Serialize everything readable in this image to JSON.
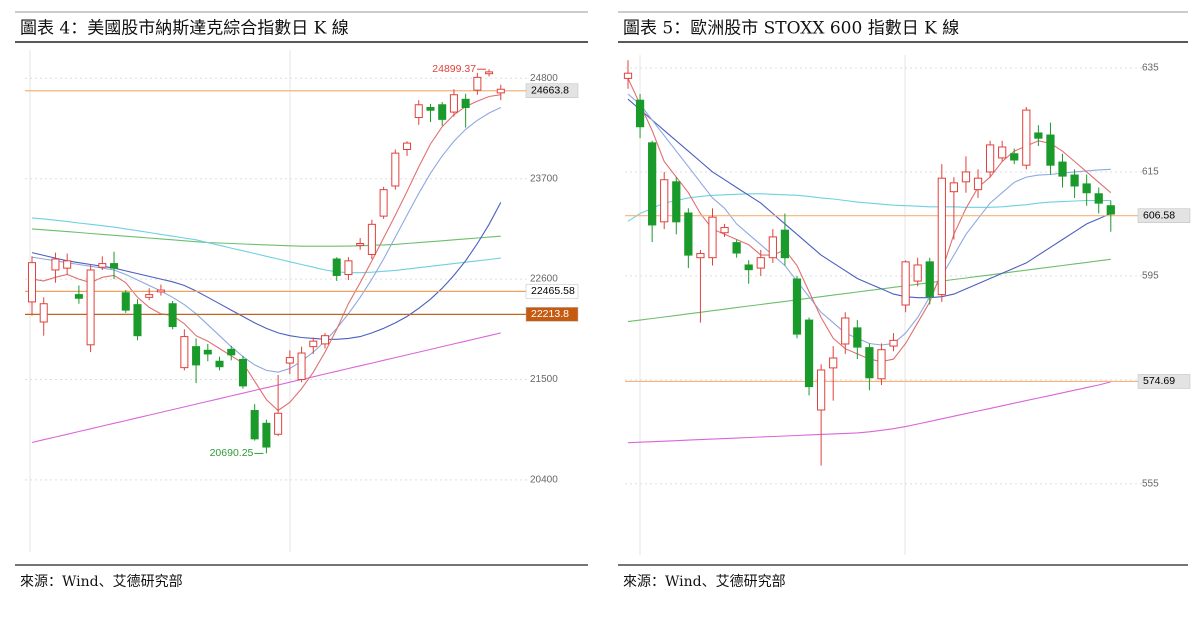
{
  "chart_data": [
    {
      "type": "candlestick",
      "title": "圖表 4：美國股市納斯達克綜合指數日 K 線",
      "source": "來源：Wind、艾德研究部",
      "ylim": [
        19610,
        25110
      ],
      "yticks": [
        20400,
        21500,
        22600,
        23700,
        24800
      ],
      "grid": true,
      "up_color": "#e0413c",
      "down_color": "#1a9a2a",
      "candles": {
        "open": [
          22350,
          22130,
          22700,
          22720,
          22430,
          21880,
          22730,
          22770,
          22450,
          22320,
          22400,
          22460,
          22330,
          21630,
          21860,
          21820,
          21700,
          21830,
          21720,
          21160,
          21020,
          20900,
          21680,
          21500,
          21860,
          21890,
          22820,
          22650,
          22970,
          22870,
          23290,
          23620,
          24020,
          24370,
          24480,
          24510,
          24430,
          24570,
          24670,
          24850,
          24640
        ],
        "high": [
          22850,
          22400,
          22890,
          22880,
          22530,
          22760,
          22850,
          22900,
          22480,
          22380,
          22500,
          22540,
          22360,
          22050,
          21950,
          21890,
          21750,
          21870,
          21760,
          21230,
          21060,
          21550,
          21820,
          21860,
          21960,
          22010,
          22840,
          22840,
          23050,
          23250,
          23610,
          24020,
          24110,
          24560,
          24520,
          24540,
          24680,
          24630,
          24860,
          24899.37,
          24730
        ],
        "low": [
          22200,
          21980,
          22560,
          22650,
          22330,
          21800,
          22700,
          22600,
          22230,
          21930,
          22370,
          22420,
          22050,
          21600,
          21460,
          21700,
          21600,
          21710,
          21400,
          20830,
          20690.25,
          20880,
          21560,
          21470,
          21780,
          21840,
          22580,
          22590,
          22920,
          22820,
          23260,
          23580,
          23950,
          24290,
          24320,
          24280,
          24380,
          24260,
          24620,
          24820,
          24560
        ],
        "close": [
          22780,
          22330,
          22820,
          22800,
          22390,
          22700,
          22770,
          22720,
          22260,
          21980,
          22430,
          22480,
          22080,
          21970,
          21660,
          21780,
          21640,
          21770,
          21430,
          20850,
          20760,
          21130,
          21740,
          21790,
          21920,
          21980,
          22640,
          22800,
          22990,
          23200,
          23580,
          23980,
          24090,
          24510,
          24450,
          24350,
          24620,
          24480,
          24810,
          24870,
          24680
        ]
      },
      "series": [
        {
          "color": "#d966d9",
          "values": [
            20810,
            20840,
            20870,
            20900,
            20930,
            20960,
            20990,
            21020,
            21050,
            21080,
            21110,
            21140,
            21170,
            21200,
            21230,
            21260,
            21290,
            21320,
            21350,
            21380,
            21410,
            21440,
            21470,
            21500,
            21530,
            21560,
            21590,
            21620,
            21650,
            21680,
            21710,
            21740,
            21770,
            21800,
            21830,
            21860,
            21890,
            21920,
            21950,
            21980,
            22010
          ]
        },
        {
          "color": "#6cbf6c",
          "values": [
            23150,
            23140,
            23130,
            23120,
            23110,
            23100,
            23090,
            23080,
            23070,
            23060,
            23050,
            23040,
            23030,
            23020,
            23010,
            23000,
            22995,
            22990,
            22985,
            22980,
            22975,
            22970,
            22965,
            22960,
            22960,
            22960,
            22960,
            22962,
            22965,
            22970,
            22975,
            22980,
            22990,
            23000,
            23010,
            23020,
            23030,
            23040,
            23050,
            23060,
            23070
          ]
        },
        {
          "color": "#6fd0e0",
          "values": [
            23270,
            23260,
            23245,
            23230,
            23215,
            23200,
            23185,
            23170,
            23150,
            23130,
            23110,
            23090,
            23070,
            23050,
            23030,
            23000,
            22970,
            22940,
            22910,
            22880,
            22850,
            22820,
            22790,
            22760,
            22730,
            22700,
            22680,
            22670,
            22670,
            22675,
            22685,
            22695,
            22710,
            22725,
            22740,
            22755,
            22770,
            22785,
            22800,
            22815,
            22830
          ]
        },
        {
          "color": "#4a5fc0",
          "values": [
            22890,
            22860,
            22830,
            22800,
            22780,
            22760,
            22740,
            22720,
            22690,
            22660,
            22630,
            22600,
            22570,
            22530,
            22470,
            22400,
            22330,
            22260,
            22190,
            22120,
            22060,
            22010,
            21980,
            21960,
            21950,
            21940,
            21940,
            21950,
            21970,
            22010,
            22060,
            22120,
            22190,
            22280,
            22380,
            22500,
            22640,
            22800,
            22990,
            23200,
            23440
          ]
        },
        {
          "color": "#8fa8e0",
          "values": [
            22840,
            22820,
            22800,
            22780,
            22760,
            22740,
            22720,
            22700,
            22650,
            22590,
            22530,
            22470,
            22400,
            22320,
            22220,
            22100,
            21980,
            21860,
            21750,
            21660,
            21600,
            21580,
            21620,
            21700,
            21800,
            21920,
            22060,
            22220,
            22400,
            22600,
            22820,
            23060,
            23300,
            23540,
            23760,
            23950,
            24110,
            24240,
            24340,
            24420,
            24480
          ]
        },
        {
          "color": "#e07070",
          "values": [
            22600,
            22580,
            22620,
            22650,
            22600,
            22560,
            22620,
            22640,
            22560,
            22400,
            22290,
            22220,
            22200,
            22110,
            21980,
            21920,
            21840,
            21760,
            21680,
            21480,
            21280,
            21160,
            21250,
            21400,
            21580,
            21800,
            22050,
            22330,
            22560,
            22800,
            23050,
            23300,
            23560,
            23830,
            24080,
            24270,
            24400,
            24490,
            24550,
            24600,
            24620
          ]
        }
      ],
      "hlines": [
        {
          "value": 24663.8,
          "color": "#f5b27a",
          "label_bg": "#e3e3e3",
          "label_color": "#000000"
        },
        {
          "value": 22465.58,
          "color": "#f0a060",
          "label_bg": "#ffffff",
          "label_color": "#000000"
        },
        {
          "value": 22213.8,
          "color": "#c0651f",
          "label_bg": "#c55a11",
          "label_color": "#ffffff"
        }
      ],
      "high_low_labels": {
        "high_color": "#e0413c",
        "low_color": "#2e9a3a"
      }
    },
    {
      "type": "candlestick",
      "title": "圖表 5：歐洲股市 STOXX 600 指數日 K 線",
      "source": "來源：Wind、艾德研究部",
      "ylim": [
        541.3,
        637.5
      ],
      "yticks": [
        555,
        575,
        595,
        615,
        635
      ],
      "grid": true,
      "up_color": "#e0413c",
      "down_color": "#1a9a2a",
      "candles": {
        "open": [
          633,
          628.8,
          620.6,
          605.4,
          613.1,
          607.1,
          598.5,
          598.5,
          603.3,
          601.4,
          597.1,
          596.5,
          598.5,
          603.8,
          594.4,
          586.5,
          569.2,
          577.3,
          581.9,
          585,
          581.2,
          575.2,
          581.5,
          589.4,
          594,
          597.7,
          591.4,
          611.2,
          613.1,
          611.6,
          615,
          617.7,
          618.5,
          616.3,
          622.5,
          622.1,
          616.9,
          614.4,
          612.7,
          610.8,
          608.5
        ],
        "high": [
          636.5,
          630,
          621,
          615,
          614,
          608,
          600,
          608,
          605,
          602,
          598,
          600,
          604,
          607,
          595,
          587,
          578,
          581.5,
          588,
          586.5,
          582,
          582,
          584,
          598,
          598.5,
          598.5,
          616.5,
          614,
          618,
          615.5,
          621,
          621,
          619.5,
          627.5,
          624,
          624.5,
          618.5,
          615.5,
          614.5,
          612,
          609.5
        ],
        "low": [
          631,
          621.5,
          601.5,
          604,
          603,
          596.5,
          586,
          597,
          602.5,
          598.5,
          593.5,
          595,
          597.5,
          597,
          583,
          572,
          558.5,
          571,
          580,
          579,
          573,
          574,
          580.5,
          588,
          593,
          589.5,
          590,
          602,
          611,
          610,
          614,
          617,
          616.5,
          615.5,
          620,
          614.5,
          612,
          610,
          608.5,
          607,
          603.5
        ],
        "close": [
          634,
          623.7,
          604.8,
          613.5,
          605.4,
          599,
          599.3,
          606.3,
          604.3,
          599.4,
          596.2,
          598.5,
          602.5,
          598.5,
          583.8,
          573.7,
          576.9,
          579.2,
          586.9,
          581.3,
          575.4,
          580.8,
          582.6,
          597.7,
          597.1,
          591,
          613.8,
          612.9,
          615,
          613.8,
          620.2,
          619.8,
          617.3,
          626.9,
          621.5,
          616.3,
          614.2,
          612.3,
          611,
          609,
          606.9
        ]
      },
      "series": [
        {
          "color": "#d966d9",
          "values": [
            562.9,
            563,
            563.1,
            563.2,
            563.3,
            563.4,
            563.5,
            563.6,
            563.7,
            563.8,
            563.9,
            564,
            564.1,
            564.2,
            564.3,
            564.4,
            564.5,
            564.6,
            564.7,
            564.8,
            565,
            565.3,
            565.6,
            566,
            566.5,
            567,
            567.5,
            568,
            568.5,
            569,
            569.5,
            570,
            570.5,
            571,
            571.5,
            572,
            572.5,
            573,
            573.5,
            574,
            574.6
          ]
        },
        {
          "color": "#6cbf6c",
          "values": [
            586.2,
            586.5,
            586.8,
            587.1,
            587.4,
            587.7,
            588,
            588.3,
            588.6,
            588.9,
            589.2,
            589.5,
            589.8,
            590.1,
            590.4,
            590.7,
            591,
            591.3,
            591.6,
            591.9,
            592.2,
            592.5,
            592.8,
            593.1,
            593.4,
            593.7,
            594,
            594.3,
            594.6,
            594.9,
            595.2,
            595.5,
            595.8,
            596.1,
            596.4,
            596.7,
            597,
            597.3,
            597.6,
            597.9,
            598.2
          ]
        },
        {
          "color": "#6fd0e0",
          "values": [
            605.5,
            607,
            608,
            609,
            609.5,
            610,
            610.3,
            610.5,
            610.6,
            610.7,
            610.8,
            610.8,
            610.7,
            610.6,
            610.5,
            610.3,
            610,
            609.8,
            609.5,
            609.2,
            609,
            608.8,
            608.6,
            608.5,
            608.4,
            608.3,
            608.3,
            608.3,
            608.2,
            608.2,
            608.2,
            608.3,
            608.5,
            608.7,
            609,
            609.2,
            609.3,
            609.4,
            609.5,
            609.5,
            609.5
          ]
        },
        {
          "color": "#4a5fc0",
          "values": [
            629,
            627,
            625,
            623,
            621,
            619,
            617,
            615,
            613.5,
            612,
            610.5,
            609,
            607,
            605,
            603,
            601,
            599,
            597.5,
            596,
            594.5,
            593.5,
            592.5,
            591.5,
            591,
            590.8,
            590.8,
            591,
            591.5,
            592.5,
            593.5,
            594.5,
            595.5,
            596.5,
            597.5,
            599,
            600.5,
            602,
            603.5,
            605,
            606,
            607
          ]
        },
        {
          "color": "#8fa8e0",
          "values": [
            630,
            628,
            625,
            622,
            619,
            616,
            613,
            610,
            608,
            605,
            603,
            601,
            599,
            597,
            594,
            591,
            588,
            586,
            584,
            583,
            582,
            581.7,
            582,
            584,
            587,
            591,
            595,
            599,
            603,
            606,
            609,
            611,
            613,
            614,
            614.4,
            614.5,
            614.8,
            615,
            615.2,
            615.4,
            615.5
          ]
        },
        {
          "color": "#e07070",
          "values": [
            633,
            628,
            623,
            617,
            614,
            611,
            607,
            604,
            603,
            602,
            601,
            599,
            599,
            600,
            597,
            592,
            587,
            583,
            581,
            580,
            579,
            578.5,
            579,
            582,
            586,
            590,
            596,
            603,
            608,
            612,
            614,
            617,
            619,
            620,
            621,
            620.5,
            619,
            617,
            615,
            613,
            611
          ]
        }
      ],
      "hlines": [
        {
          "value": 606.58,
          "color": "#f5b27a",
          "label_bg": "#e3e3e3",
          "label_color": "#000000"
        },
        {
          "value": 574.69,
          "color": "#f5b27a",
          "label_bg": "#e3e3e3",
          "label_color": "#000000"
        }
      ]
    }
  ]
}
